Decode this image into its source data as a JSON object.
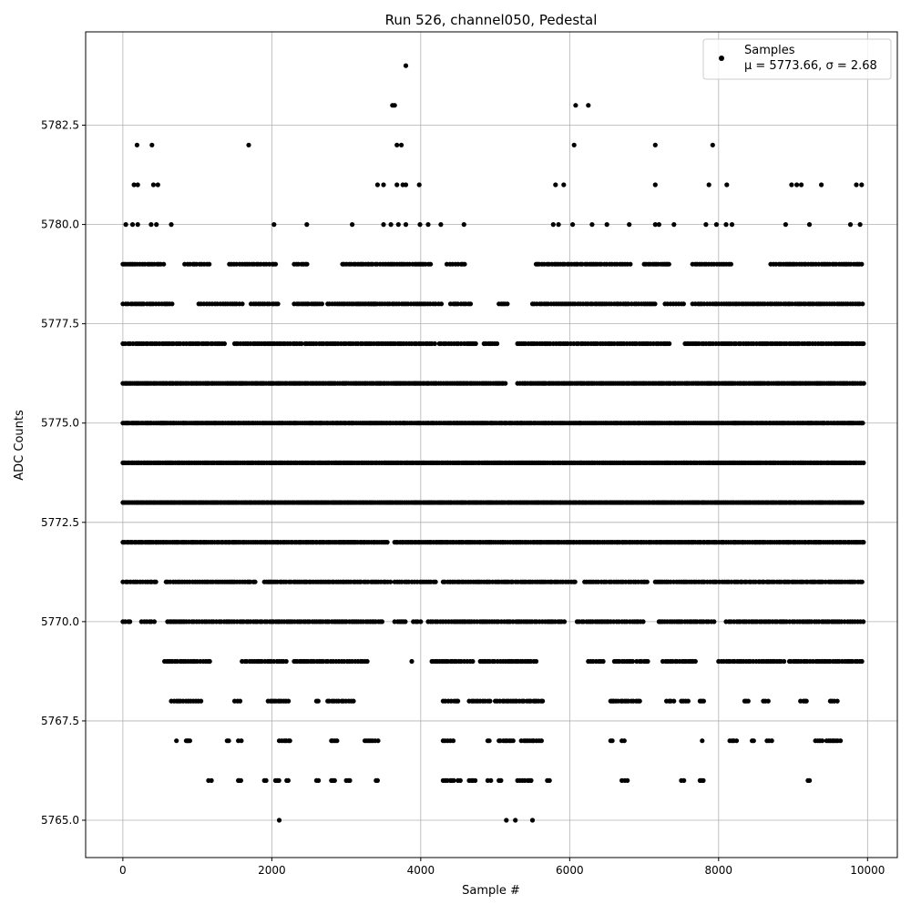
{
  "chart_data": {
    "type": "scatter",
    "title": "Run 526, channel050, Pedestal",
    "xlabel": "Sample #",
    "ylabel": "ADC Counts",
    "xlim": [
      -500,
      10400
    ],
    "ylim": [
      5764.06,
      5784.85
    ],
    "grid": true,
    "legend_position": "top-right",
    "legend": {
      "label": "Samples",
      "stats": "μ = 5773.66, σ = 2.68"
    },
    "x_ticks": [
      0,
      2000,
      4000,
      6000,
      8000,
      10000
    ],
    "x_tick_labels": [
      "0",
      "2000",
      "4000",
      "6000",
      "8000",
      "10000"
    ],
    "y_ticks": [
      5765.0,
      5767.5,
      5770.0,
      5772.5,
      5775.0,
      5777.5,
      5780.0,
      5782.5
    ],
    "y_tick_labels": [
      "5765.0",
      "5767.5",
      "5770.0",
      "5772.5",
      "5775.0",
      "5777.5",
      "5780.0",
      "5782.5"
    ],
    "series": [
      {
        "name": "Samples",
        "color": "#000000",
        "points": [
          [
            3800,
            5784
          ],
          [
            3620,
            5783
          ],
          [
            3650,
            5783
          ],
          [
            6080,
            5783
          ],
          [
            6250,
            5783
          ],
          [
            190,
            5782
          ],
          [
            390,
            5782
          ],
          [
            1690,
            5782
          ],
          [
            3680,
            5782
          ],
          [
            3740,
            5782
          ],
          [
            6060,
            5782
          ],
          [
            7150,
            5782
          ],
          [
            7920,
            5782
          ],
          [
            150,
            5781
          ],
          [
            200,
            5781
          ],
          [
            410,
            5781
          ],
          [
            470,
            5781
          ],
          [
            3420,
            5781
          ],
          [
            3500,
            5781
          ],
          [
            3680,
            5781
          ],
          [
            3760,
            5781
          ],
          [
            3800,
            5781
          ],
          [
            3980,
            5781
          ],
          [
            5810,
            5781
          ],
          [
            5920,
            5781
          ],
          [
            7150,
            5781
          ],
          [
            7870,
            5781
          ],
          [
            8110,
            5781
          ],
          [
            8980,
            5781
          ],
          [
            9050,
            5781
          ],
          [
            9110,
            5781
          ],
          [
            9380,
            5781
          ],
          [
            9850,
            5781
          ],
          [
            9920,
            5781
          ],
          [
            40,
            5780
          ],
          [
            130,
            5780
          ],
          [
            200,
            5780
          ],
          [
            380,
            5780
          ],
          [
            450,
            5780
          ],
          [
            650,
            5780
          ],
          [
            2030,
            5780
          ],
          [
            2470,
            5780
          ],
          [
            3080,
            5780
          ],
          [
            3500,
            5780
          ],
          [
            3600,
            5780
          ],
          [
            3700,
            5780
          ],
          [
            3800,
            5780
          ],
          [
            3990,
            5780
          ],
          [
            4100,
            5780
          ],
          [
            4270,
            5780
          ],
          [
            4580,
            5780
          ],
          [
            5780,
            5780
          ],
          [
            5850,
            5780
          ],
          [
            6040,
            5780
          ],
          [
            6300,
            5780
          ],
          [
            6500,
            5780
          ],
          [
            6800,
            5780
          ],
          [
            7150,
            5780
          ],
          [
            7200,
            5780
          ],
          [
            7400,
            5780
          ],
          [
            7830,
            5780
          ],
          [
            7970,
            5780
          ],
          [
            8100,
            5780
          ],
          [
            8180,
            5780
          ],
          [
            8900,
            5780
          ],
          [
            9220,
            5780
          ],
          [
            9770,
            5780
          ],
          [
            9900,
            5780
          ]
        ],
        "bands": [
          {
            "y": 5779,
            "ranges": [
              [
                0,
                550
              ],
              [
                830,
                1180
              ],
              [
                1430,
                2080
              ],
              [
                2300,
                2500
              ],
              [
                2950,
                3300
              ],
              [
                3300,
                4150
              ],
              [
                4350,
                4620
              ],
              [
                5550,
                6850
              ],
              [
                7000,
                7350
              ],
              [
                7650,
                8180
              ],
              [
                8700,
                9950
              ]
            ]
          },
          {
            "y": 5778,
            "ranges": [
              [
                0,
                670
              ],
              [
                1020,
                1620
              ],
              [
                1720,
                2100
              ],
              [
                2300,
                2700
              ],
              [
                2750,
                3400
              ],
              [
                3300,
                4300
              ],
              [
                4400,
                4700
              ],
              [
                5050,
                5200
              ],
              [
                5500,
                7180
              ],
              [
                7280,
                7550
              ],
              [
                7650,
                9950
              ]
            ]
          },
          {
            "y": 5777,
            "ranges": [
              [
                0,
                1380
              ],
              [
                1500,
                2400
              ],
              [
                2450,
                4200
              ],
              [
                4250,
                4750
              ],
              [
                4850,
                5030
              ],
              [
                5300,
                7350
              ],
              [
                7550,
                9950
              ]
            ]
          },
          {
            "y": 5776,
            "ranges": [
              [
                0,
                5150
              ],
              [
                5300,
                9950
              ]
            ]
          },
          {
            "y": 5775,
            "ranges": [
              [
                0,
                9950
              ]
            ]
          },
          {
            "y": 5774,
            "ranges": [
              [
                0,
                9950
              ]
            ]
          },
          {
            "y": 5773,
            "ranges": [
              [
                0,
                9950
              ]
            ]
          },
          {
            "y": 5772,
            "ranges": [
              [
                0,
                3550
              ],
              [
                3650,
                9950
              ]
            ]
          },
          {
            "y": 5771,
            "ranges": [
              [
                0,
                450
              ],
              [
                580,
                1800
              ],
              [
                1900,
                3600
              ],
              [
                3650,
                4200
              ],
              [
                4300,
                6100
              ],
              [
                6200,
                7050
              ],
              [
                7150,
                9950
              ]
            ]
          },
          {
            "y": 5770,
            "ranges": [
              [
                0,
                100
              ],
              [
                250,
                450
              ],
              [
                600,
                3500
              ],
              [
                3650,
                3800
              ],
              [
                3900,
                4000
              ],
              [
                4100,
                5950
              ],
              [
                6100,
                7000
              ],
              [
                7200,
                7950
              ],
              [
                8100,
                9950
              ]
            ]
          },
          {
            "y": 5769,
            "ranges": [
              [
                560,
                1200
              ],
              [
                1600,
                2200
              ],
              [
                2300,
                3300
              ],
              [
                3880,
                3900
              ],
              [
                4150,
                4700
              ],
              [
                4800,
                5550
              ],
              [
                6250,
                6450
              ],
              [
                6600,
                6850
              ],
              [
                6900,
                7050
              ],
              [
                7250,
                7700
              ],
              [
                8000,
                8900
              ],
              [
                8950,
                9950
              ]
            ]
          },
          {
            "y": 5768,
            "ranges": [
              [
                650,
                1050
              ],
              [
                1500,
                1600
              ],
              [
                1950,
                2250
              ],
              [
                2600,
                2650
              ],
              [
                2750,
                3100
              ],
              [
                4300,
                4500
              ],
              [
                4650,
                4950
              ],
              [
                5000,
                5650
              ],
              [
                6550,
                6950
              ],
              [
                7300,
                7400
              ],
              [
                7500,
                7600
              ],
              [
                7750,
                7800
              ],
              [
                8350,
                8400
              ],
              [
                8600,
                8700
              ],
              [
                9100,
                9200
              ],
              [
                9500,
                9600
              ]
            ]
          },
          {
            "y": 5767,
            "ranges": [
              [
                850,
                900
              ],
              [
                1400,
                1450
              ],
              [
                1550,
                1600
              ],
              [
                2100,
                2250
              ],
              [
                2800,
                2900
              ],
              [
                3250,
                3450
              ],
              [
                4300,
                4450
              ],
              [
                4900,
                4950
              ],
              [
                5050,
                5250
              ],
              [
                5350,
                5650
              ],
              [
                6550,
                6600
              ],
              [
                6700,
                6750
              ],
              [
                7780,
                7800
              ],
              [
                8150,
                8250
              ],
              [
                8450,
                8500
              ],
              [
                8650,
                8750
              ],
              [
                9300,
                9400
              ],
              [
                9450,
                9650
              ]
            ]
          },
          {
            "y": 5766,
            "ranges": [
              [
                1150,
                1200
              ],
              [
                1550,
                1600
              ],
              [
                1900,
                1950
              ],
              [
                2050,
                2100
              ],
              [
                2200,
                2250
              ],
              [
                2600,
                2650
              ],
              [
                2800,
                2850
              ],
              [
                3000,
                3050
              ],
              [
                3400,
                3450
              ],
              [
                4300,
                4450
              ],
              [
                4500,
                4550
              ],
              [
                4650,
                4750
              ],
              [
                4900,
                4950
              ],
              [
                5050,
                5100
              ],
              [
                5300,
                5500
              ],
              [
                5700,
                5750
              ],
              [
                6700,
                6800
              ],
              [
                7500,
                7550
              ],
              [
                7750,
                7800
              ],
              [
                9200,
                9250
              ]
            ]
          }
        ],
        "extra_points": [
          [
            2100,
            5765
          ],
          [
            5150,
            5765
          ],
          [
            5270,
            5765
          ],
          [
            5500,
            5765
          ],
          [
            720,
            5767
          ],
          [
            870,
            5767
          ],
          [
            1560,
            5766
          ]
        ]
      }
    ]
  }
}
